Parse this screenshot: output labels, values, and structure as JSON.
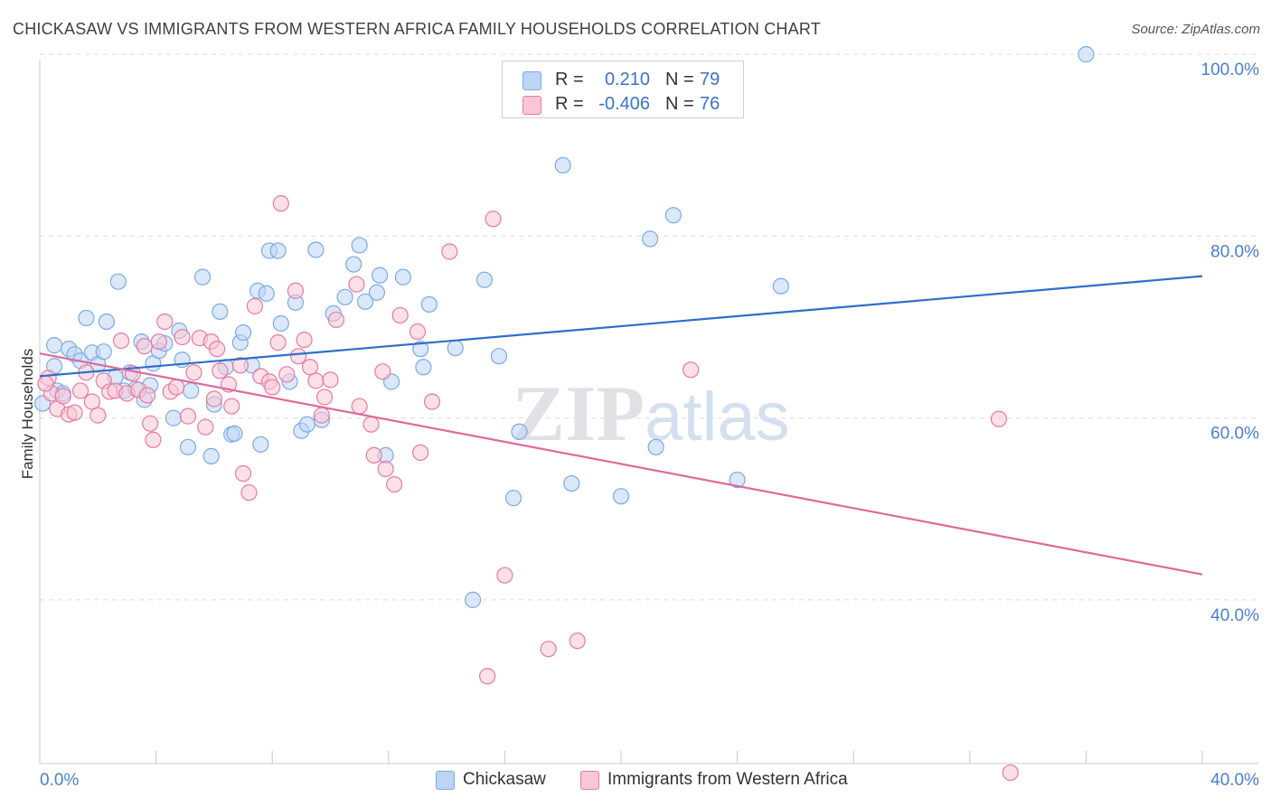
{
  "title": "CHICKASAW VS IMMIGRANTS FROM WESTERN AFRICA FAMILY HOUSEHOLDS CORRELATION CHART",
  "source": "Source: ZipAtlas.com",
  "watermark": "ZIPatlas",
  "legend": {
    "rows": [
      {
        "r_label": "R =",
        "r_value": "0.210",
        "n_label": "N =",
        "n_value": "79",
        "color": "#7aaae8",
        "fill": "#bdd5f5"
      },
      {
        "r_label": "R =",
        "r_value": "-0.406",
        "n_label": "N =",
        "n_value": "76",
        "color": "#e87aa0",
        "fill": "#f9c6d6"
      }
    ]
  },
  "bottom_legend": {
    "items": [
      {
        "label": "Chickasaw",
        "fill": "#bdd5f5",
        "color": "#7aaae8"
      },
      {
        "label": "Immigrants from Western Africa",
        "fill": "#f9c6d6",
        "color": "#e87aa0"
      }
    ]
  },
  "chart_data": {
    "type": "scatter",
    "title": "CHICKASAW VS IMMIGRANTS FROM WESTERN AFRICA FAMILY HOUSEHOLDS CORRELATION CHART",
    "xlabel": "",
    "ylabel": "Family Households",
    "xlim": [
      0.0,
      40.0
    ],
    "ylim": [
      22.0,
      102.0
    ],
    "x_tick_labels": [
      "0.0%",
      "40.0%"
    ],
    "y_ticks": [
      40.0,
      60.0,
      80.0,
      100.0
    ],
    "y_tick_labels": [
      "40.0%",
      "60.0%",
      "80.0%",
      "100.0%"
    ],
    "grid": true,
    "series": [
      {
        "name": "Chickasaw",
        "color": "#7aaae8",
        "fill": "#bdd5f5",
        "trend_color": "#2f6ecb",
        "trend": {
          "x": [
            0.0,
            40.0
          ],
          "y": [
            64.6,
            75.6
          ]
        },
        "points": [
          [
            0.5,
            65.7
          ],
          [
            0.5,
            68.0
          ],
          [
            0.6,
            63.0
          ],
          [
            0.8,
            62.7
          ],
          [
            1.0,
            67.6
          ],
          [
            1.2,
            67.0
          ],
          [
            1.4,
            66.3
          ],
          [
            1.6,
            71.0
          ],
          [
            1.8,
            67.2
          ],
          [
            2.0,
            65.9
          ],
          [
            2.2,
            67.3
          ],
          [
            2.3,
            70.6
          ],
          [
            2.6,
            64.5
          ],
          [
            2.7,
            75.0
          ],
          [
            2.9,
            63.0
          ],
          [
            3.1,
            65.0
          ],
          [
            3.3,
            63.2
          ],
          [
            3.5,
            68.4
          ],
          [
            3.6,
            62.0
          ],
          [
            3.8,
            63.6
          ],
          [
            3.9,
            66.0
          ],
          [
            4.1,
            67.4
          ],
          [
            4.3,
            68.2
          ],
          [
            4.6,
            60.0
          ],
          [
            4.8,
            69.6
          ],
          [
            4.9,
            66.4
          ],
          [
            5.1,
            56.8
          ],
          [
            5.2,
            63.0
          ],
          [
            5.6,
            75.5
          ],
          [
            5.9,
            55.8
          ],
          [
            6.0,
            61.5
          ],
          [
            6.2,
            71.7
          ],
          [
            6.4,
            65.6
          ],
          [
            6.6,
            58.2
          ],
          [
            6.7,
            58.3
          ],
          [
            6.9,
            68.3
          ],
          [
            7.0,
            69.4
          ],
          [
            7.3,
            65.8
          ],
          [
            7.5,
            74.0
          ],
          [
            7.6,
            57.1
          ],
          [
            7.8,
            73.7
          ],
          [
            7.9,
            78.4
          ],
          [
            8.2,
            78.4
          ],
          [
            8.3,
            70.4
          ],
          [
            8.6,
            64.0
          ],
          [
            8.8,
            72.7
          ],
          [
            9.0,
            58.6
          ],
          [
            9.2,
            59.3
          ],
          [
            9.5,
            78.5
          ],
          [
            9.7,
            59.8
          ],
          [
            10.1,
            71.5
          ],
          [
            10.5,
            73.3
          ],
          [
            10.8,
            76.9
          ],
          [
            11.0,
            79.0
          ],
          [
            11.2,
            72.8
          ],
          [
            11.6,
            73.8
          ],
          [
            11.7,
            75.7
          ],
          [
            11.9,
            55.9
          ],
          [
            12.1,
            64.0
          ],
          [
            12.5,
            75.5
          ],
          [
            13.1,
            67.6
          ],
          [
            13.2,
            65.6
          ],
          [
            13.4,
            72.5
          ],
          [
            14.3,
            67.7
          ],
          [
            14.9,
            40.0
          ],
          [
            15.3,
            75.2
          ],
          [
            15.8,
            66.8
          ],
          [
            16.3,
            51.2
          ],
          [
            16.5,
            58.5
          ],
          [
            18.0,
            87.8
          ],
          [
            18.3,
            52.8
          ],
          [
            20.0,
            51.4
          ],
          [
            21.0,
            79.7
          ],
          [
            21.2,
            56.8
          ],
          [
            21.8,
            82.3
          ],
          [
            24.0,
            53.2
          ],
          [
            25.5,
            74.5
          ],
          [
            36.0,
            100.0
          ],
          [
            0.1,
            61.6
          ]
        ]
      },
      {
        "name": "Immigrants from Western Africa",
        "color": "#e87aa0",
        "fill": "#f9c6d6",
        "trend_color": "#e0699a",
        "trend": {
          "x": [
            0.0,
            40.0
          ],
          "y": [
            67.1,
            42.8
          ]
        },
        "points": [
          [
            0.3,
            64.4
          ],
          [
            0.4,
            62.7
          ],
          [
            0.6,
            61.0
          ],
          [
            0.8,
            62.4
          ],
          [
            1.0,
            60.4
          ],
          [
            1.2,
            60.6
          ],
          [
            1.4,
            63.0
          ],
          [
            1.6,
            65.0
          ],
          [
            1.8,
            61.8
          ],
          [
            2.0,
            60.3
          ],
          [
            2.2,
            64.1
          ],
          [
            2.4,
            62.9
          ],
          [
            2.6,
            63.0
          ],
          [
            2.8,
            68.5
          ],
          [
            3.0,
            62.7
          ],
          [
            3.2,
            64.9
          ],
          [
            3.4,
            63.1
          ],
          [
            3.6,
            67.9
          ],
          [
            3.8,
            59.4
          ],
          [
            3.9,
            57.6
          ],
          [
            4.1,
            68.4
          ],
          [
            4.3,
            70.6
          ],
          [
            4.5,
            62.9
          ],
          [
            4.7,
            63.4
          ],
          [
            4.9,
            68.9
          ],
          [
            5.1,
            60.2
          ],
          [
            5.3,
            65.0
          ],
          [
            5.5,
            68.8
          ],
          [
            5.7,
            59.0
          ],
          [
            5.9,
            68.4
          ],
          [
            6.0,
            62.1
          ],
          [
            6.1,
            67.6
          ],
          [
            6.2,
            65.2
          ],
          [
            6.5,
            63.7
          ],
          [
            6.6,
            61.3
          ],
          [
            6.9,
            65.8
          ],
          [
            7.0,
            53.9
          ],
          [
            7.2,
            51.8
          ],
          [
            7.4,
            72.3
          ],
          [
            7.6,
            64.6
          ],
          [
            7.9,
            64.0
          ],
          [
            8.0,
            63.4
          ],
          [
            8.2,
            68.3
          ],
          [
            8.3,
            83.6
          ],
          [
            8.5,
            64.8
          ],
          [
            8.8,
            74.0
          ],
          [
            8.9,
            66.8
          ],
          [
            9.1,
            68.6
          ],
          [
            9.3,
            65.6
          ],
          [
            9.5,
            64.1
          ],
          [
            9.7,
            60.3
          ],
          [
            10.0,
            64.2
          ],
          [
            10.2,
            70.8
          ],
          [
            10.9,
            74.7
          ],
          [
            11.0,
            61.3
          ],
          [
            11.4,
            59.3
          ],
          [
            11.5,
            55.9
          ],
          [
            11.8,
            65.1
          ],
          [
            11.9,
            54.4
          ],
          [
            12.2,
            52.7
          ],
          [
            12.4,
            71.3
          ],
          [
            13.1,
            56.2
          ],
          [
            13.5,
            61.8
          ],
          [
            14.1,
            78.3
          ],
          [
            15.4,
            31.6
          ],
          [
            15.6,
            81.9
          ],
          [
            16.0,
            42.7
          ],
          [
            17.5,
            34.6
          ],
          [
            18.5,
            35.5
          ],
          [
            22.4,
            65.3
          ],
          [
            33.0,
            59.9
          ],
          [
            33.4,
            21.0
          ],
          [
            13.0,
            69.5
          ],
          [
            9.8,
            62.3
          ],
          [
            3.7,
            62.5
          ],
          [
            0.2,
            63.8
          ]
        ]
      }
    ]
  }
}
